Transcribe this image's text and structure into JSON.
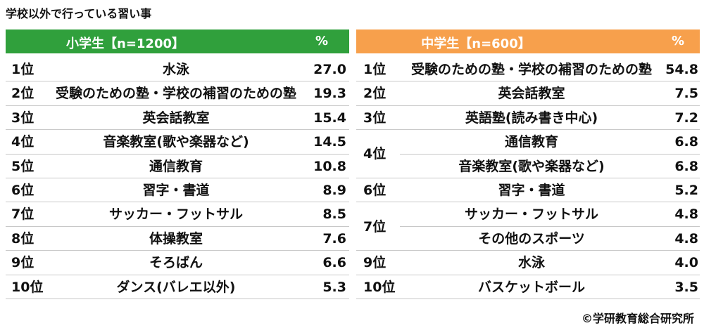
{
  "title": "学校以外で行っている習い事",
  "left": {
    "header": {
      "group": "小学生【n=1200】",
      "unit": "%"
    },
    "rows": [
      {
        "rank": "1位",
        "item": "水泳",
        "value": "27.0"
      },
      {
        "rank": "2位",
        "item": "受験のための塾・学校の補習のための塾",
        "value": "19.3"
      },
      {
        "rank": "3位",
        "item": "英会話教室",
        "value": "15.4"
      },
      {
        "rank": "4位",
        "item": "音楽教室(歌や楽器など)",
        "value": "14.5"
      },
      {
        "rank": "5位",
        "item": "通信教育",
        "value": "10.8"
      },
      {
        "rank": "6位",
        "item": "習字・書道",
        "value": "8.9"
      },
      {
        "rank": "7位",
        "item": "サッカー・フットサル",
        "value": "8.5"
      },
      {
        "rank": "8位",
        "item": "体操教室",
        "value": "7.6"
      },
      {
        "rank": "9位",
        "item": "そろばん",
        "value": "6.6"
      },
      {
        "rank": "10位",
        "item": "ダンス(バレエ以外)",
        "value": "5.3"
      }
    ]
  },
  "right": {
    "header": {
      "group": "中学生【n=600】",
      "unit": "%"
    },
    "groups": [
      {
        "rank": "1位",
        "entries": [
          {
            "item": "受験のための塾・学校の補習のための塾",
            "value": "54.8"
          }
        ]
      },
      {
        "rank": "2位",
        "entries": [
          {
            "item": "英会話教室",
            "value": "7.5"
          }
        ]
      },
      {
        "rank": "3位",
        "entries": [
          {
            "item": "英語塾(読み書き中心)",
            "value": "7.2"
          }
        ]
      },
      {
        "rank": "4位",
        "entries": [
          {
            "item": "通信教育",
            "value": "6.8"
          },
          {
            "item": "音楽教室(歌や楽器など)",
            "value": "6.8"
          }
        ]
      },
      {
        "rank": "6位",
        "entries": [
          {
            "item": "習字・書道",
            "value": "5.2"
          }
        ]
      },
      {
        "rank": "7位",
        "entries": [
          {
            "item": "サッカー・フットサル",
            "value": "4.8"
          },
          {
            "item": "その他のスポーツ",
            "value": "4.8"
          }
        ]
      },
      {
        "rank": "9位",
        "entries": [
          {
            "item": "水泳",
            "value": "4.0"
          }
        ]
      },
      {
        "rank": "10位",
        "entries": [
          {
            "item": "バスケットボール",
            "value": "3.5"
          }
        ]
      }
    ]
  },
  "footer": "©学研教育総合研究所"
}
